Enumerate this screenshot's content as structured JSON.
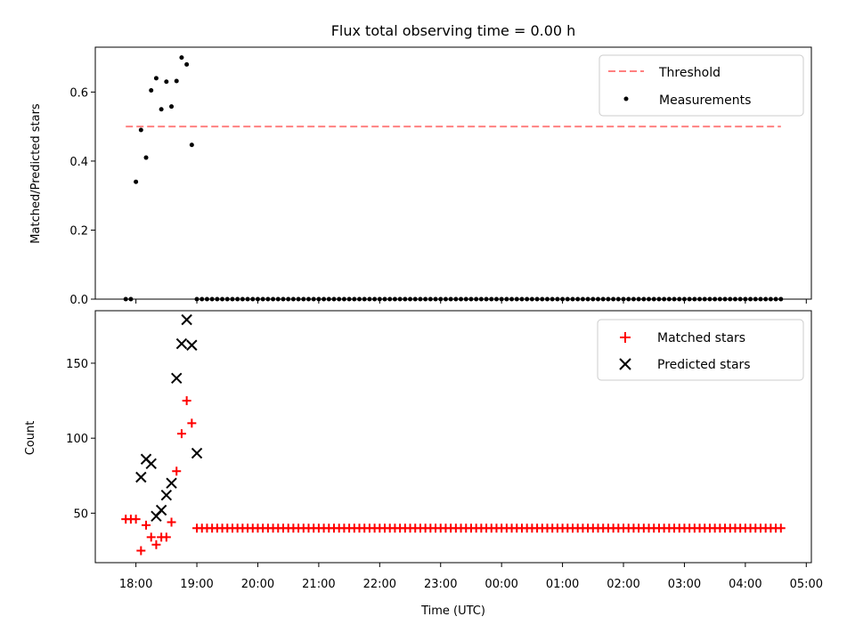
{
  "chart_data": [
    {
      "type": "scatter",
      "title": "Flux total observing time = 0.00 h",
      "xlabel": "",
      "ylabel": "Matched/Predicted stars",
      "xlim": [
        "17:20",
        "05:05"
      ],
      "ylim": [
        0,
        0.73
      ],
      "yticks": [
        "0.0",
        "0.2",
        "0.4",
        "0.6"
      ],
      "grid": false,
      "legend_position": "top-right",
      "threshold": {
        "name": "Threshold",
        "value": 0.5,
        "x_start": "17:50",
        "x_end": "04:35",
        "color": "#ff8080",
        "style": "dashed"
      },
      "series": [
        {
          "name": "Measurements",
          "color": "#000000",
          "marker": "dot",
          "points": [
            [
              "17:50",
              0.0
            ],
            [
              "17:55",
              0.0
            ],
            [
              "18:00",
              0.34
            ],
            [
              "18:05",
              0.49
            ],
            [
              "18:10",
              0.41
            ],
            [
              "18:15",
              0.605
            ],
            [
              "18:20",
              0.64
            ],
            [
              "18:25",
              0.55
            ],
            [
              "18:30",
              0.63
            ],
            [
              "18:35",
              0.558
            ],
            [
              "18:40",
              0.632
            ],
            [
              "18:45",
              0.7
            ],
            [
              "18:50",
              0.68
            ],
            [
              "18:55",
              0.447
            ]
          ],
          "constant_run": {
            "start": "19:00",
            "end": "04:35",
            "step_minutes": 5,
            "value": 0.0
          }
        }
      ]
    },
    {
      "type": "scatter",
      "title": "",
      "xlabel": "Time (UTC)",
      "ylabel": "Count",
      "xlim": [
        "17:20",
        "05:05"
      ],
      "ylim": [
        17,
        185
      ],
      "xticks": [
        "18:00",
        "19:00",
        "20:00",
        "21:00",
        "22:00",
        "23:00",
        "00:00",
        "01:00",
        "02:00",
        "03:00",
        "04:00",
        "05:00"
      ],
      "yticks": [
        "50",
        "100",
        "150"
      ],
      "grid": false,
      "legend_position": "top-right",
      "series": [
        {
          "name": "Matched stars",
          "color": "#ff0000",
          "marker": "plus",
          "points": [
            [
              "17:50",
              46
            ],
            [
              "17:55",
              46
            ],
            [
              "18:00",
              46
            ],
            [
              "18:05",
              25
            ],
            [
              "18:10",
              42
            ],
            [
              "18:15",
              34
            ],
            [
              "18:20",
              29
            ],
            [
              "18:25",
              34
            ],
            [
              "18:30",
              34
            ],
            [
              "18:35",
              44
            ],
            [
              "18:40",
              78
            ],
            [
              "18:45",
              103
            ],
            [
              "18:50",
              125
            ],
            [
              "18:55",
              110
            ]
          ],
          "constant_run": {
            "start": "19:00",
            "end": "04:35",
            "step_minutes": 5,
            "value": 40
          }
        },
        {
          "name": "Predicted stars",
          "color": "#000000",
          "marker": "x",
          "points": [
            [
              "18:05",
              74
            ],
            [
              "18:10",
              86
            ],
            [
              "18:15",
              83
            ],
            [
              "18:20",
              48
            ],
            [
              "18:25",
              52
            ],
            [
              "18:30",
              62
            ],
            [
              "18:35",
              70
            ],
            [
              "18:40",
              140
            ],
            [
              "18:45",
              163
            ],
            [
              "18:50",
              179
            ],
            [
              "18:55",
              162
            ],
            [
              "19:00",
              90
            ]
          ]
        }
      ]
    }
  ]
}
